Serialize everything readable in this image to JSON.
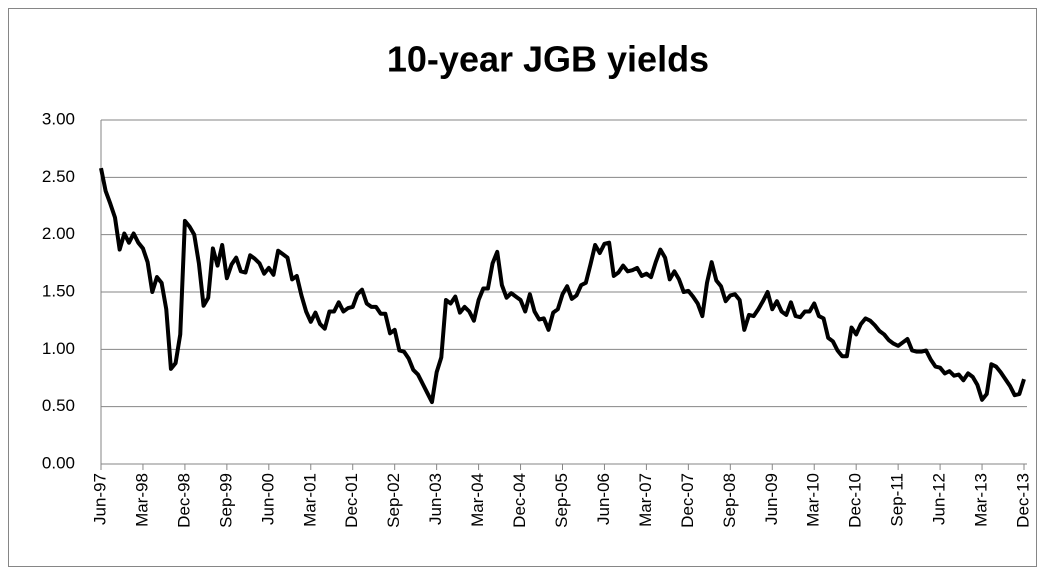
{
  "chart_data": {
    "type": "line",
    "title": "10-year JGB yields",
    "categories": [
      "Jun-97",
      null,
      null,
      null,
      null,
      null,
      null,
      null,
      null,
      "Mar-98",
      null,
      null,
      null,
      null,
      null,
      null,
      null,
      null,
      "Dec-98",
      null,
      null,
      null,
      null,
      null,
      null,
      null,
      null,
      "Sep-99",
      null,
      null,
      null,
      null,
      null,
      null,
      null,
      null,
      "Jun-00",
      null,
      null,
      null,
      null,
      null,
      null,
      null,
      null,
      "Mar-01",
      null,
      null,
      null,
      null,
      null,
      null,
      null,
      null,
      "Dec-01",
      null,
      null,
      null,
      null,
      null,
      null,
      null,
      null,
      "Sep-02",
      null,
      null,
      null,
      null,
      null,
      null,
      null,
      null,
      "Jun-03",
      null,
      null,
      null,
      null,
      null,
      null,
      null,
      null,
      "Mar-04",
      null,
      null,
      null,
      null,
      null,
      null,
      null,
      null,
      "Dec-04",
      null,
      null,
      null,
      null,
      null,
      null,
      null,
      null,
      "Sep-05",
      null,
      null,
      null,
      null,
      null,
      null,
      null,
      null,
      "Jun-06",
      null,
      null,
      null,
      null,
      null,
      null,
      null,
      null,
      "Mar-07",
      null,
      null,
      null,
      null,
      null,
      null,
      null,
      null,
      "Dec-07",
      null,
      null,
      null,
      null,
      null,
      null,
      null,
      null,
      "Sep-08",
      null,
      null,
      null,
      null,
      null,
      null,
      null,
      null,
      "Jun-09",
      null,
      null,
      null,
      null,
      null,
      null,
      null,
      null,
      "Mar-10",
      null,
      null,
      null,
      null,
      null,
      null,
      null,
      null,
      "Dec-10",
      null,
      null,
      null,
      null,
      null,
      null,
      null,
      null,
      "Sep-11",
      null,
      null,
      null,
      null,
      null,
      null,
      null,
      null,
      "Jun-12",
      null,
      null,
      null,
      null,
      null,
      null,
      null,
      null,
      "Mar-13",
      null,
      null,
      null,
      null,
      null,
      null,
      null,
      null,
      "Dec-13"
    ],
    "values": [
      2.58,
      2.38,
      2.27,
      2.15,
      1.87,
      2.01,
      1.93,
      2.01,
      1.93,
      1.88,
      1.76,
      1.5,
      1.63,
      1.58,
      1.35,
      0.83,
      0.88,
      1.13,
      2.12,
      2.07,
      2.0,
      1.75,
      1.38,
      1.45,
      1.88,
      1.73,
      1.91,
      1.62,
      1.74,
      1.8,
      1.68,
      1.67,
      1.82,
      1.79,
      1.75,
      1.66,
      1.71,
      1.65,
      1.86,
      1.83,
      1.8,
      1.61,
      1.64,
      1.47,
      1.33,
      1.24,
      1.32,
      1.22,
      1.18,
      1.33,
      1.33,
      1.41,
      1.33,
      1.36,
      1.37,
      1.48,
      1.52,
      1.4,
      1.37,
      1.37,
      1.31,
      1.31,
      1.14,
      1.17,
      0.99,
      0.98,
      0.92,
      0.82,
      0.78,
      0.7,
      0.62,
      0.54,
      0.8,
      0.93,
      1.43,
      1.4,
      1.46,
      1.32,
      1.37,
      1.33,
      1.25,
      1.43,
      1.53,
      1.53,
      1.75,
      1.85,
      1.56,
      1.45,
      1.49,
      1.46,
      1.43,
      1.33,
      1.48,
      1.33,
      1.26,
      1.27,
      1.17,
      1.32,
      1.35,
      1.48,
      1.55,
      1.44,
      1.47,
      1.56,
      1.58,
      1.74,
      1.91,
      1.84,
      1.92,
      1.93,
      1.64,
      1.67,
      1.73,
      1.68,
      1.69,
      1.71,
      1.64,
      1.66,
      1.63,
      1.76,
      1.87,
      1.8,
      1.61,
      1.68,
      1.61,
      1.5,
      1.51,
      1.46,
      1.4,
      1.29,
      1.58,
      1.76,
      1.6,
      1.55,
      1.42,
      1.47,
      1.48,
      1.43,
      1.17,
      1.3,
      1.29,
      1.35,
      1.42,
      1.5,
      1.35,
      1.42,
      1.33,
      1.3,
      1.41,
      1.29,
      1.28,
      1.33,
      1.33,
      1.4,
      1.29,
      1.27,
      1.1,
      1.07,
      0.99,
      0.94,
      0.94,
      1.19,
      1.13,
      1.22,
      1.27,
      1.25,
      1.21,
      1.16,
      1.13,
      1.08,
      1.05,
      1.03,
      1.06,
      1.09,
      0.99,
      0.98,
      0.98,
      0.99,
      0.91,
      0.85,
      0.84,
      0.79,
      0.81,
      0.77,
      0.78,
      0.73,
      0.79,
      0.76,
      0.69,
      0.56,
      0.61,
      0.87,
      0.85,
      0.8,
      0.74,
      0.68,
      0.6,
      0.61,
      0.74
    ],
    "color": "#000000",
    "ylim": [
      0,
      3
    ],
    "yticks": [
      {
        "value": 0,
        "label": "0.00"
      },
      {
        "value": 0.5,
        "label": "0.50"
      },
      {
        "value": 1,
        "label": "1.00"
      },
      {
        "value": 1.5,
        "label": "1.50"
      },
      {
        "value": 2,
        "label": "2.00"
      },
      {
        "value": 2.5,
        "label": "2.50"
      },
      {
        "value": 3,
        "label": "3.00"
      }
    ],
    "grid": true
  }
}
